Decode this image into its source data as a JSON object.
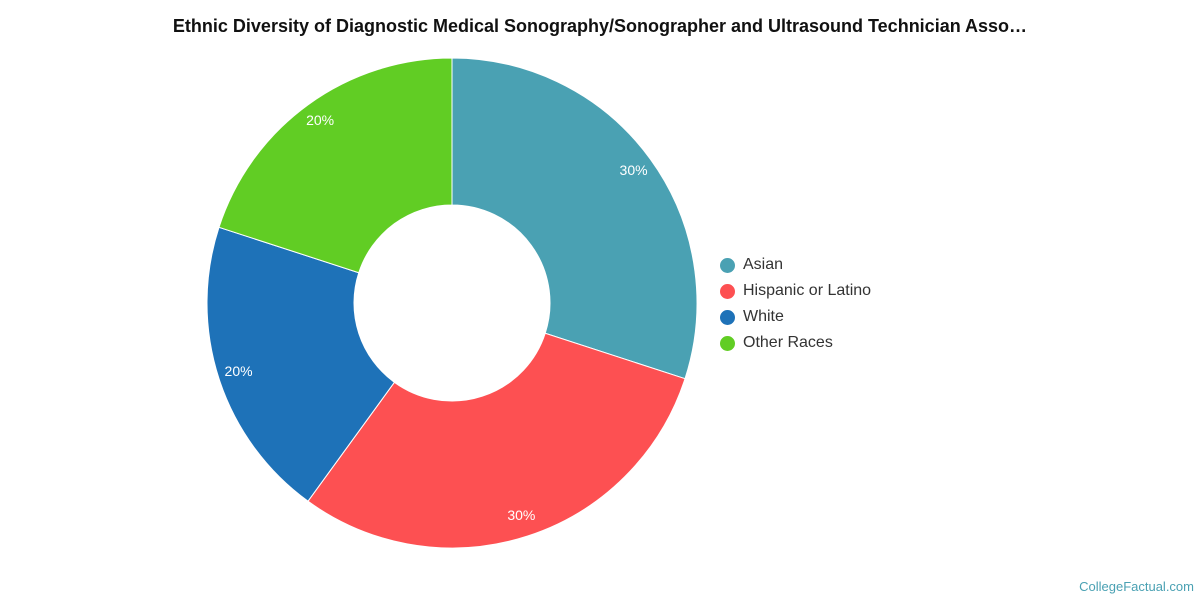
{
  "chart_data": {
    "type": "pie",
    "title": "Ethnic Diversity of Diagnostic Medical Sonography/Sonographer and Ultrasound Technician Asso…",
    "categories": [
      "Asian",
      "Hispanic or Latino",
      "White",
      "Other Races"
    ],
    "values": [
      30,
      30,
      20,
      20
    ],
    "data_labels": [
      "30%",
      "30%",
      "20%",
      "20%"
    ],
    "colors": [
      "#4aa1b3",
      "#fd5052",
      "#1e72b8",
      "#61cd24"
    ],
    "donut": true,
    "legend_position": "right"
  },
  "legend": [
    {
      "label": "Asian",
      "color": "#4aa1b3"
    },
    {
      "label": "Hispanic or Latino",
      "color": "#fd5052"
    },
    {
      "label": "White",
      "color": "#1e72b8"
    },
    {
      "label": "Other Races",
      "color": "#61cd24"
    }
  ],
  "credit": "CollegeFactual.com"
}
